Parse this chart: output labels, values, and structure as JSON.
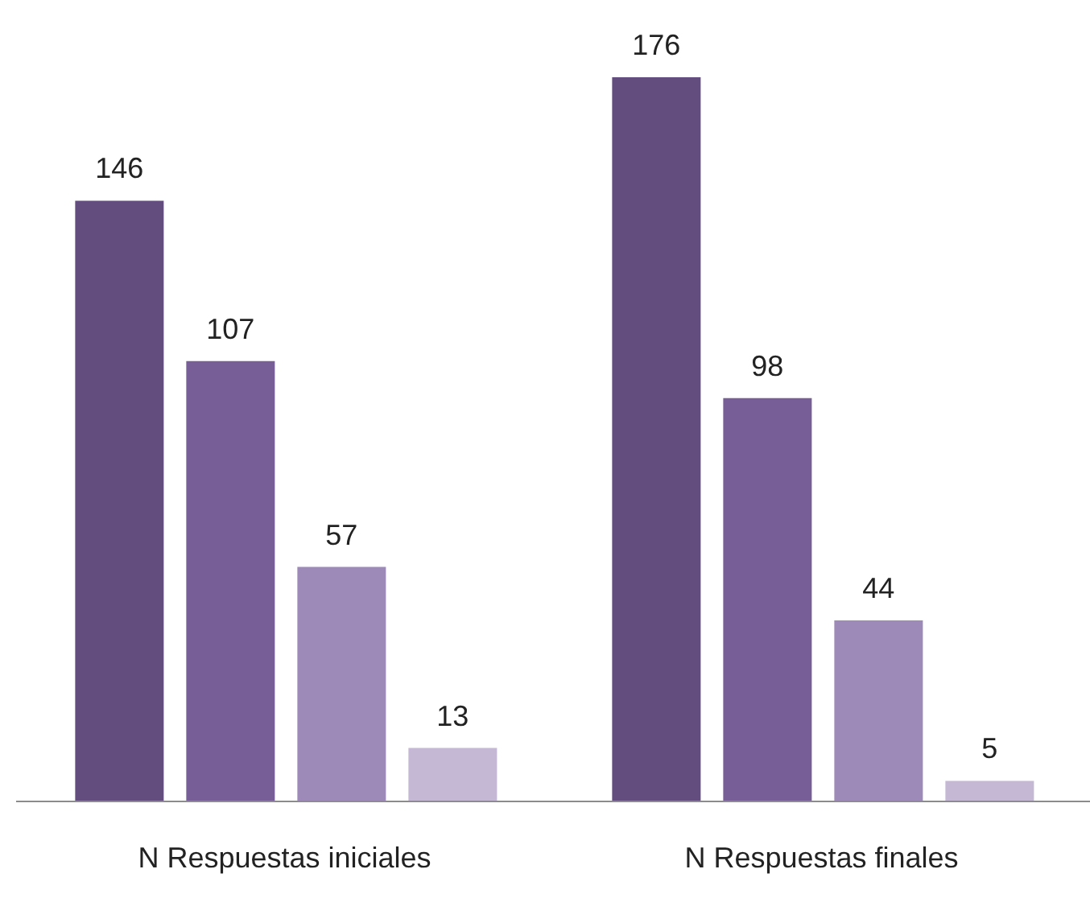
{
  "chart_data": {
    "type": "bar",
    "categories": [
      "N Respuestas iniciales",
      "N Respuestas finales"
    ],
    "series": [
      {
        "color": "#634d7e",
        "values": [
          146,
          176
        ]
      },
      {
        "color": "#775e97",
        "values": [
          107,
          98
        ]
      },
      {
        "color": "#9e8ab8",
        "values": [
          57,
          44
        ]
      },
      {
        "color": "#c4b8d4",
        "values": [
          13,
          5
        ]
      }
    ],
    "data_labels": true,
    "grid": false,
    "legend": false
  }
}
